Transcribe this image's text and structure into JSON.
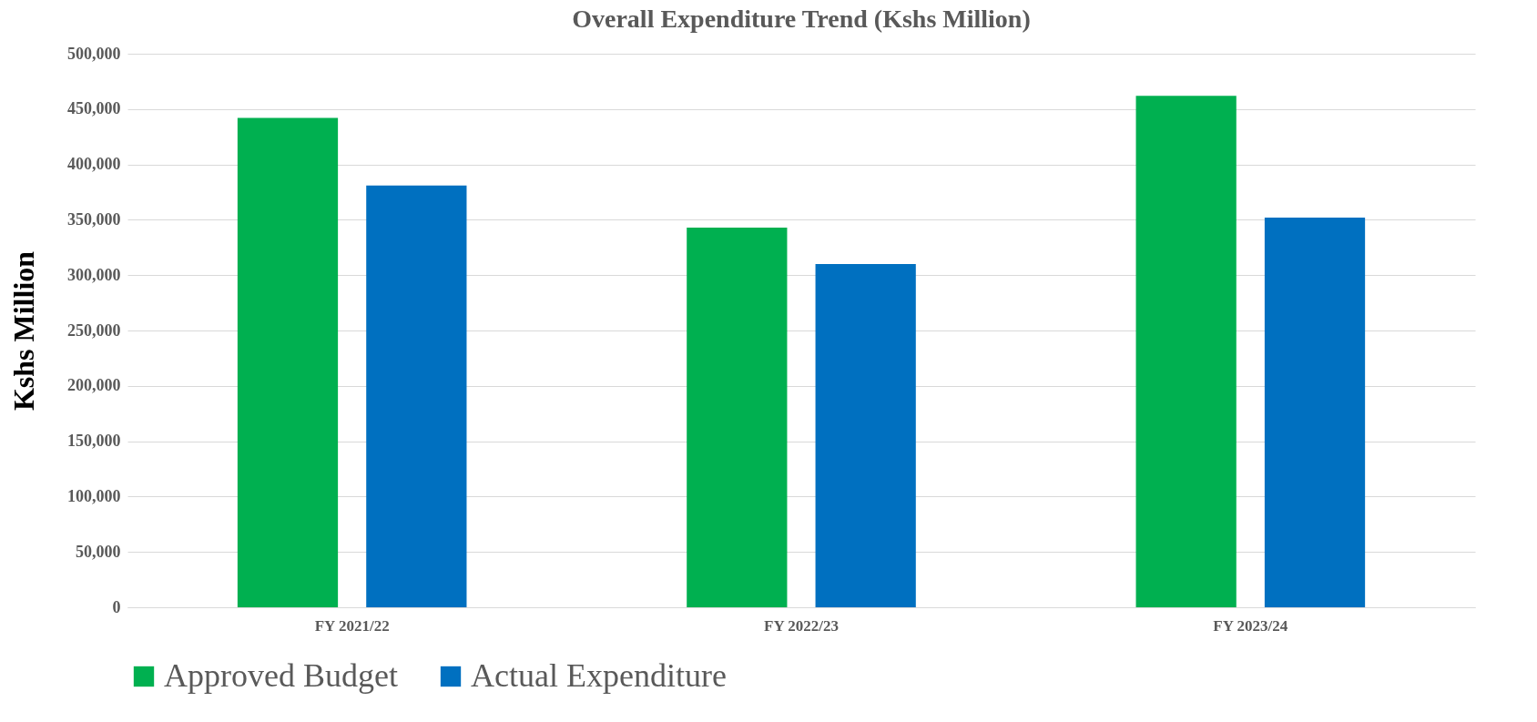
{
  "chart_data": {
    "type": "bar",
    "title": "Overall Expenditure Trend (Kshs Million)",
    "ylabel": "Kshs Million",
    "categories": [
      "FY 2021/22",
      "FY 2022/23",
      "FY 2023/24"
    ],
    "series": [
      {
        "name": "Approved Budget",
        "color": "#00b050",
        "values": [
          442000,
          343000,
          462000
        ]
      },
      {
        "name": "Actual Expenditure",
        "color": "#0070c0",
        "values": [
          381000,
          310000,
          352000
        ]
      }
    ],
    "ylim": [
      0,
      500000
    ],
    "yticks": [
      0,
      {
        "value": 50000,
        "label": "50,000"
      },
      {
        "value": 100000,
        "label": "100,000"
      },
      {
        "value": 150000,
        "label": "150,000"
      },
      {
        "value": 200000,
        "label": "200,000"
      },
      {
        "value": 250000,
        "label": "250,000"
      },
      {
        "value": 300000,
        "label": "300,000"
      },
      {
        "value": 350000,
        "label": "350,000"
      },
      {
        "value": 400000,
        "label": "400,000"
      },
      {
        "value": 450000,
        "label": "450,000"
      },
      {
        "value": 500000,
        "label": "500,000"
      }
    ],
    "grid": "y",
    "legend": "bottom"
  }
}
